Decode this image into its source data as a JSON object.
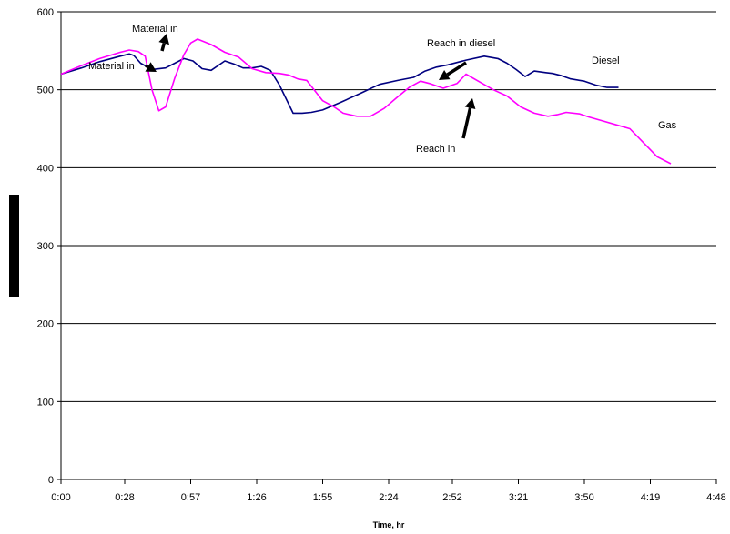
{
  "chart_data": {
    "type": "line",
    "title": "",
    "xlabel": "Time, hr",
    "ylabel": "",
    "xlim": [
      "0:00",
      "4:48"
    ],
    "ylim": [
      0,
      600
    ],
    "x_ticks": [
      "0:00",
      "0:28",
      "0:57",
      "1:26",
      "1:55",
      "2:24",
      "2:52",
      "3:21",
      "3:50",
      "4:19",
      "4:48"
    ],
    "y_ticks": [
      "0",
      "100",
      "200",
      "300",
      "400",
      "500",
      "600"
    ],
    "grid": "horizontal",
    "legend": "none",
    "series": [
      {
        "name": "Diesel",
        "color": "#000080",
        "x": [
          "0:00",
          "0:09",
          "0:17",
          "0:26",
          "0:30",
          "0:32",
          "0:35",
          "0:40",
          "0:46",
          "0:50",
          "0:54",
          "0:58",
          "1:02",
          "1:06",
          "1:12",
          "1:16",
          "1:20",
          "1:24",
          "1:28",
          "1:32",
          "1:36",
          "1:42",
          "1:46",
          "1:50",
          "1:55",
          "2:03",
          "2:12",
          "2:20",
          "2:28",
          "2:35",
          "2:40",
          "2:45",
          "2:50",
          "2:58",
          "3:06",
          "3:12",
          "3:16",
          "3:20",
          "3:24",
          "3:28",
          "3:33",
          "3:36",
          "3:40",
          "3:44",
          "3:50",
          "3:55",
          "4:00",
          "4:05"
        ],
        "values": [
          520,
          528,
          536,
          543,
          546,
          544,
          534,
          526,
          528,
          534,
          540,
          537,
          527,
          525,
          537,
          533,
          528,
          528,
          530,
          525,
          506,
          470,
          470,
          471,
          474,
          484,
          496,
          507,
          512,
          516,
          524,
          529,
          532,
          538,
          543,
          540,
          534,
          526,
          517,
          524,
          522,
          521,
          518,
          514,
          511,
          506,
          503,
          503
        ]
      },
      {
        "name": "Gas",
        "color": "#ff00ff",
        "x": [
          "0:00",
          "0:09",
          "0:17",
          "0:26",
          "0:30",
          "0:34",
          "0:37",
          "0:40",
          "0:43",
          "0:46",
          "0:50",
          "0:54",
          "0:57",
          "1:00",
          "1:06",
          "1:12",
          "1:18",
          "1:24",
          "1:30",
          "1:36",
          "1:40",
          "1:44",
          "1:48",
          "1:55",
          "2:00",
          "2:04",
          "2:10",
          "2:16",
          "2:22",
          "2:28",
          "2:33",
          "2:38",
          "2:42",
          "2:48",
          "2:54",
          "2:58",
          "3:04",
          "3:10",
          "3:16",
          "3:22",
          "3:28",
          "3:34",
          "3:38",
          "3:42",
          "3:48",
          "3:52",
          "3:58",
          "4:04",
          "4:10",
          "4:16",
          "4:22",
          "4:28"
        ],
        "values": [
          520,
          531,
          540,
          548,
          551,
          549,
          543,
          500,
          473,
          478,
          515,
          545,
          560,
          565,
          558,
          548,
          542,
          527,
          522,
          521,
          519,
          514,
          512,
          486,
          478,
          470,
          466,
          466,
          476,
          491,
          503,
          511,
          508,
          502,
          508,
          520,
          510,
          500,
          492,
          478,
          470,
          466,
          468,
          471,
          469,
          465,
          460,
          455,
          450,
          432,
          414,
          405
        ]
      }
    ],
    "annotations": [
      {
        "text": "Material in",
        "type": "label"
      },
      {
        "text": "Material in",
        "type": "label"
      },
      {
        "text": "Reach in diesel",
        "type": "label"
      },
      {
        "text": "Reach in",
        "type": "label"
      },
      {
        "text": "Diesel",
        "type": "series-label"
      },
      {
        "text": "Gas",
        "type": "series-label"
      }
    ]
  }
}
